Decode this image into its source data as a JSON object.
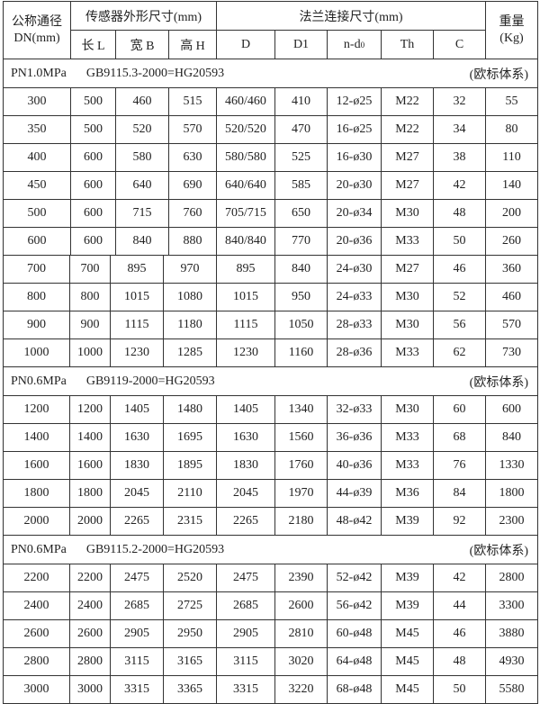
{
  "header": {
    "dn": "公称通径",
    "dn_unit": "DN(mm)",
    "sensor_group": "传感器外形尺寸(mm)",
    "flange_group": "法兰连接尺寸(mm)",
    "weight": "重量",
    "weight_unit": "(Kg)",
    "cols": [
      "长 L",
      "宽 B",
      "高 H",
      "D",
      "D1",
      "n-d",
      "Th",
      "C"
    ],
    "nd_sub": "0"
  },
  "sections": [
    {
      "pressure": "PN1.0MPa",
      "standard": "GB9115.3-2000=HG20593",
      "system": "(欧标体系)",
      "rows": [
        [
          "300",
          "500",
          "460",
          "515",
          "460/460",
          "410",
          "12-ø25",
          "M22",
          "32",
          "55"
        ],
        [
          "350",
          "500",
          "520",
          "570",
          "520/520",
          "470",
          "16-ø25",
          "M22",
          "34",
          "80"
        ],
        [
          "400",
          "600",
          "580",
          "630",
          "580/580",
          "525",
          "16-ø30",
          "M27",
          "38",
          "110"
        ],
        [
          "450",
          "600",
          "640",
          "690",
          "640/640",
          "585",
          "20-ø30",
          "M27",
          "42",
          "140"
        ],
        [
          "500",
          "600",
          "715",
          "760",
          "705/715",
          "650",
          "20-ø34",
          "M30",
          "48",
          "200"
        ],
        [
          "600",
          "600",
          "840",
          "880",
          "840/840",
          "770",
          "20-ø36",
          "M33",
          "50",
          "260"
        ],
        [
          "700",
          "700",
          "895",
          "970",
          "895",
          "840",
          "24-ø30",
          "M27",
          "46",
          "360"
        ],
        [
          "800",
          "800",
          "1015",
          "1080",
          "1015",
          "950",
          "24-ø33",
          "M30",
          "52",
          "460"
        ],
        [
          "900",
          "900",
          "1115",
          "1180",
          "1115",
          "1050",
          "28-ø33",
          "M30",
          "56",
          "570"
        ],
        [
          "1000",
          "1000",
          "1230",
          "1285",
          "1230",
          "1160",
          "28-ø36",
          "M33",
          "62",
          "730"
        ]
      ]
    },
    {
      "pressure": "PN0.6MPa",
      "standard": "GB9119-2000=HG20593",
      "system": "(欧标体系)",
      "rows": [
        [
          "1200",
          "1200",
          "1405",
          "1480",
          "1405",
          "1340",
          "32-ø33",
          "M30",
          "60",
          "600"
        ],
        [
          "1400",
          "1400",
          "1630",
          "1695",
          "1630",
          "1560",
          "36-ø36",
          "M33",
          "68",
          "840"
        ],
        [
          "1600",
          "1600",
          "1830",
          "1895",
          "1830",
          "1760",
          "40-ø36",
          "M33",
          "76",
          "1330"
        ],
        [
          "1800",
          "1800",
          "2045",
          "2110",
          "2045",
          "1970",
          "44-ø39",
          "M36",
          "84",
          "1800"
        ],
        [
          "2000",
          "2000",
          "2265",
          "2315",
          "2265",
          "2180",
          "48-ø42",
          "M39",
          "92",
          "2300"
        ]
      ]
    },
    {
      "pressure": "PN0.6MPa",
      "standard": "GB9115.2-2000=HG20593",
      "system": "(欧标体系)",
      "rows": [
        [
          "2200",
          "2200",
          "2475",
          "2520",
          "2475",
          "2390",
          "52-ø42",
          "M39",
          "42",
          "2800"
        ],
        [
          "2400",
          "2400",
          "2685",
          "2725",
          "2685",
          "2600",
          "56-ø42",
          "M39",
          "44",
          "3300"
        ],
        [
          "2600",
          "2600",
          "2905",
          "2950",
          "2905",
          "2810",
          "60-ø48",
          "M45",
          "46",
          "3880"
        ],
        [
          "2800",
          "2800",
          "3115",
          "3165",
          "3115",
          "3020",
          "64-ø48",
          "M45",
          "48",
          "4930"
        ],
        [
          "3000",
          "3000",
          "3315",
          "3365",
          "3315",
          "3220",
          "68-ø48",
          "M45",
          "50",
          "5580"
        ]
      ]
    }
  ]
}
